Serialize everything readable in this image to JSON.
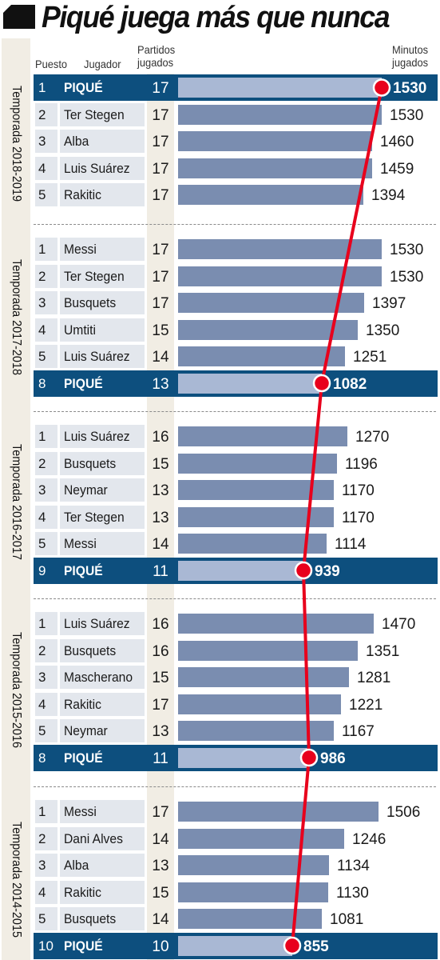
{
  "title": "Piqué juega más que nunca",
  "headers": {
    "puesto": "Puesto",
    "jugador": "Jugador",
    "partidos": [
      "Partidos",
      "jugados"
    ],
    "minutos": [
      "Minutos",
      "jugados"
    ]
  },
  "colors": {
    "band": "#0d4f7e",
    "bar": "#7a8db0",
    "highlight_bar": "#a9b8d4",
    "trend_line": "#e8001c",
    "row_cell": "#e3e7ed",
    "column_tint": "#f1ede4"
  },
  "chart_data": {
    "type": "bar",
    "title": "Piqué juega más que nunca",
    "xlabel": "Minutos jugados",
    "value_range": [
      0,
      1530
    ],
    "highlight_player": "PIQUÉ",
    "seasons": [
      {
        "label": "Temporada 2018-2019",
        "rows": [
          {
            "pos": "1",
            "player": "PIQUÉ",
            "partidos": "17",
            "minutos": 1530,
            "highlight": true
          },
          {
            "pos": "2",
            "player": "Ter Stegen",
            "partidos": "17",
            "minutos": 1530
          },
          {
            "pos": "3",
            "player": "Alba",
            "partidos": "17",
            "minutos": 1460
          },
          {
            "pos": "4",
            "player": "Luis Suárez",
            "partidos": "17",
            "minutos": 1459
          },
          {
            "pos": "5",
            "player": "Rakitic",
            "partidos": "17",
            "minutos": 1394
          }
        ]
      },
      {
        "label": "Temporada 2017-2018",
        "rows": [
          {
            "pos": "1",
            "player": "Messi",
            "partidos": "17",
            "minutos": 1530
          },
          {
            "pos": "2",
            "player": "Ter Stegen",
            "partidos": "17",
            "minutos": 1530
          },
          {
            "pos": "3",
            "player": "Busquets",
            "partidos": "17",
            "minutos": 1397
          },
          {
            "pos": "4",
            "player": "Umtiti",
            "partidos": "15",
            "minutos": 1350
          },
          {
            "pos": "5",
            "player": "Luis Suárez",
            "partidos": "14",
            "minutos": 1251
          },
          {
            "pos": "8",
            "player": "PIQUÉ",
            "partidos": "13",
            "minutos": 1082,
            "highlight": true
          }
        ]
      },
      {
        "label": "Temporada 2016-2017",
        "rows": [
          {
            "pos": "1",
            "player": "Luis Suárez",
            "partidos": "16",
            "minutos": 1270
          },
          {
            "pos": "2",
            "player": "Busquets",
            "partidos": "15",
            "minutos": 1196
          },
          {
            "pos": "3",
            "player": "Neymar",
            "partidos": "13",
            "minutos": 1170
          },
          {
            "pos": "4",
            "player": "Ter Stegen",
            "partidos": "13",
            "minutos": 1170
          },
          {
            "pos": "5",
            "player": "Messi",
            "partidos": "14",
            "minutos": 1114
          },
          {
            "pos": "9",
            "player": "PIQUÉ",
            "partidos": "11",
            "minutos": 939,
            "highlight": true
          }
        ]
      },
      {
        "label": "Temporada 2015-2016",
        "rows": [
          {
            "pos": "1",
            "player": "Luis Suárez",
            "partidos": "16",
            "minutos": 1470
          },
          {
            "pos": "2",
            "player": "Busquets",
            "partidos": "16",
            "minutos": 1351
          },
          {
            "pos": "3",
            "player": "Mascherano",
            "partidos": "15",
            "minutos": 1281
          },
          {
            "pos": "4",
            "player": "Rakitic",
            "partidos": "17",
            "minutos": 1221
          },
          {
            "pos": "5",
            "player": "Neymar",
            "partidos": "13",
            "minutos": 1167
          },
          {
            "pos": "8",
            "player": "PIQUÉ",
            "partidos": "11",
            "minutos": 986,
            "highlight": true
          }
        ]
      },
      {
        "label": "Temporada 2014-2015",
        "rows": [
          {
            "pos": "1",
            "player": "Messi",
            "partidos": "17",
            "minutos": 1506
          },
          {
            "pos": "2",
            "player": "Dani Alves",
            "partidos": "14",
            "minutos": 1246
          },
          {
            "pos": "3",
            "player": "Alba",
            "partidos": "13",
            "minutos": 1134
          },
          {
            "pos": "4",
            "player": "Rakitic",
            "partidos": "15",
            "minutos": 1130
          },
          {
            "pos": "5",
            "player": "Busquets",
            "partidos": "14",
            "minutos": 1081
          },
          {
            "pos": "10",
            "player": "PIQUÉ",
            "partidos": "10",
            "minutos": 855,
            "highlight": true
          }
        ]
      }
    ]
  }
}
